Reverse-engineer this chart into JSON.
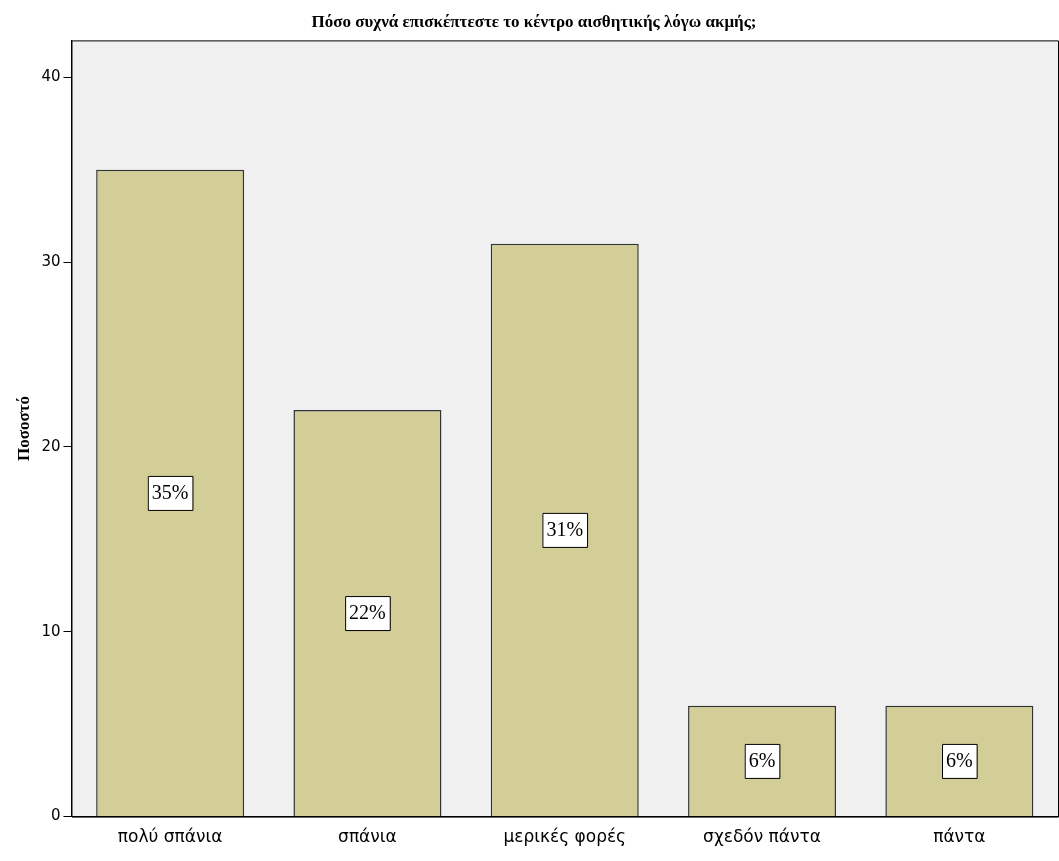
{
  "chart_data": {
    "type": "bar",
    "title": "Πόσο συχνά επισκέπτεστε το κέντρο αισθητικής λόγω ακμής;",
    "ylabel": "Ποσοστό",
    "categories": [
      "πολύ σπάνια",
      "σπάνια",
      "μερικές φορές",
      "σχεδόν πάντα",
      "πάντα"
    ],
    "values": [
      35,
      22,
      31,
      6,
      6
    ],
    "value_labels": [
      "35%",
      "22%",
      "31%",
      "6%",
      "6%"
    ],
    "color": "#d3ce97",
    "ylim": [
      0,
      42
    ],
    "yticks": [
      0,
      10,
      20,
      30,
      40
    ],
    "grid": false,
    "legend": false
  }
}
